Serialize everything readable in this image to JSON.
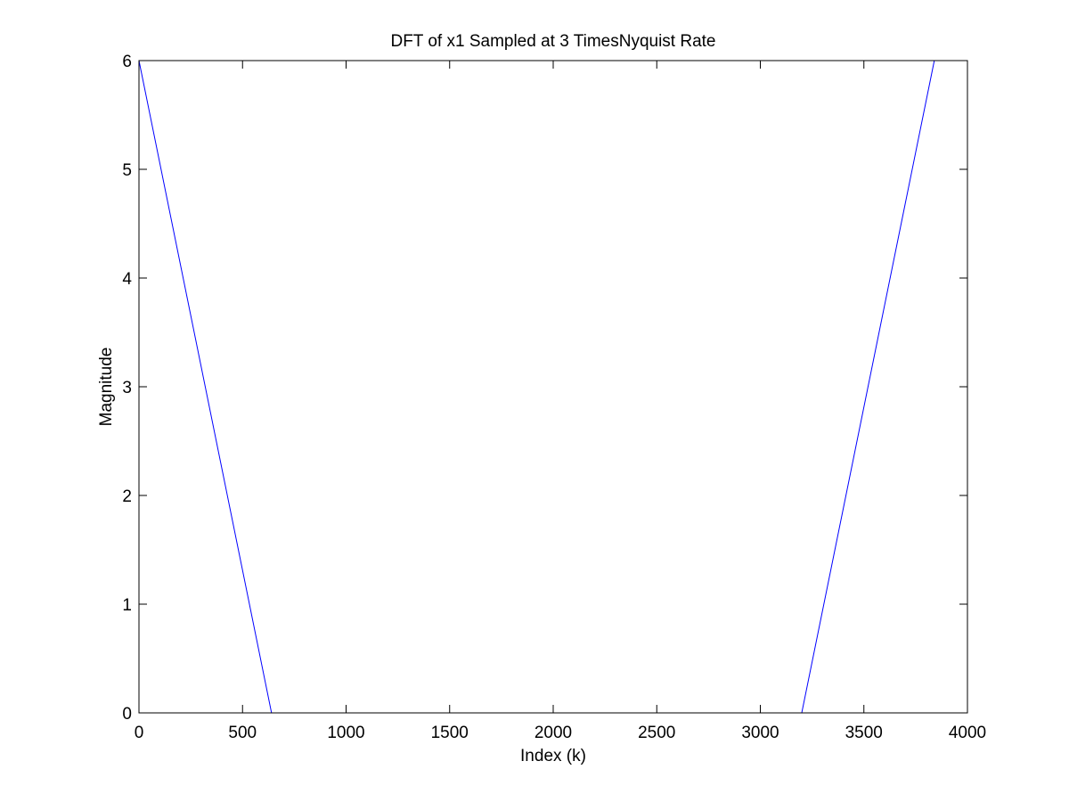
{
  "chart_data": {
    "type": "line",
    "title": "DFT of x1 Sampled at 3 TimesNyquist Rate",
    "xlabel": "Index (k)",
    "ylabel": "Magnitude",
    "xlim": [
      0,
      4000
    ],
    "ylim": [
      0,
      6
    ],
    "xticks": [
      0,
      500,
      1000,
      1500,
      2000,
      2500,
      3000,
      3500,
      4000
    ],
    "yticks": [
      0,
      1,
      2,
      3,
      4,
      5,
      6
    ],
    "grid": false,
    "box": true,
    "line_color": "#0000ff",
    "series": [
      {
        "x": [
          0,
          640,
          3200,
          3840
        ],
        "y": [
          6,
          0,
          0,
          6
        ]
      }
    ]
  }
}
